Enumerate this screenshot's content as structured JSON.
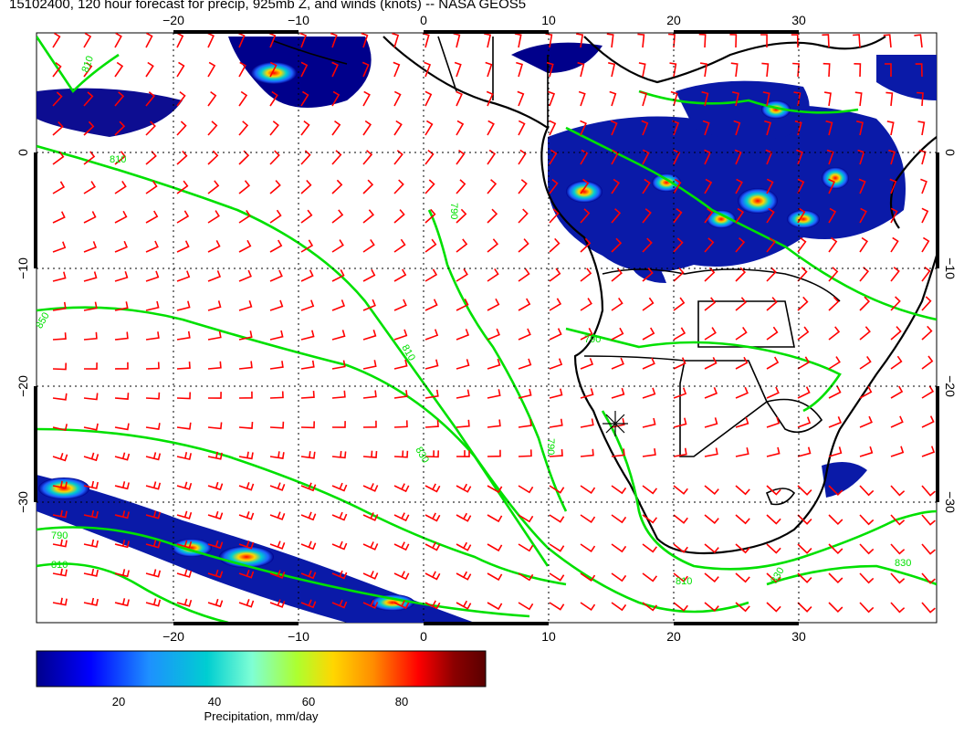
{
  "title": "15102400, 120 hour forecast for precip, 925mb Z, and winds (knots) -- NASA GEOS5",
  "axes": {
    "x_ticks_top": [
      "−20",
      "−10",
      "0",
      "10",
      "20",
      "30"
    ],
    "x_ticks_bottom": [
      "−20",
      "−10",
      "0",
      "10",
      "20",
      "30"
    ],
    "y_ticks_left": [
      "0",
      "−10",
      "−20",
      "−30"
    ],
    "y_ticks_right": [
      "0",
      "−10",
      "−20",
      "−30"
    ]
  },
  "contour_labels": [
    "810",
    "810",
    "790",
    "810",
    "830",
    "850",
    "790",
    "790",
    "790",
    "810",
    "810",
    "830",
    "830"
  ],
  "colorbar": {
    "label": "Precipitation, mm/day",
    "ticks": [
      "20",
      "40",
      "60",
      "80"
    ],
    "range": [
      0,
      100
    ],
    "colors": [
      "#00008b",
      "#0000ff",
      "#1e90ff",
      "#00ced1",
      "#7fffd4",
      "#adff2f",
      "#ffd700",
      "#ff8c00",
      "#ff0000",
      "#8b0000",
      "#5a0000"
    ]
  },
  "map": {
    "lon_range": [
      -30,
      42
    ],
    "lat_range": [
      -40,
      10
    ],
    "land_color": "#ffffff",
    "coast_color": "#000000",
    "contour_color": "#00e000",
    "barb_color": "#ff0000",
    "marker": "star-cross"
  }
}
